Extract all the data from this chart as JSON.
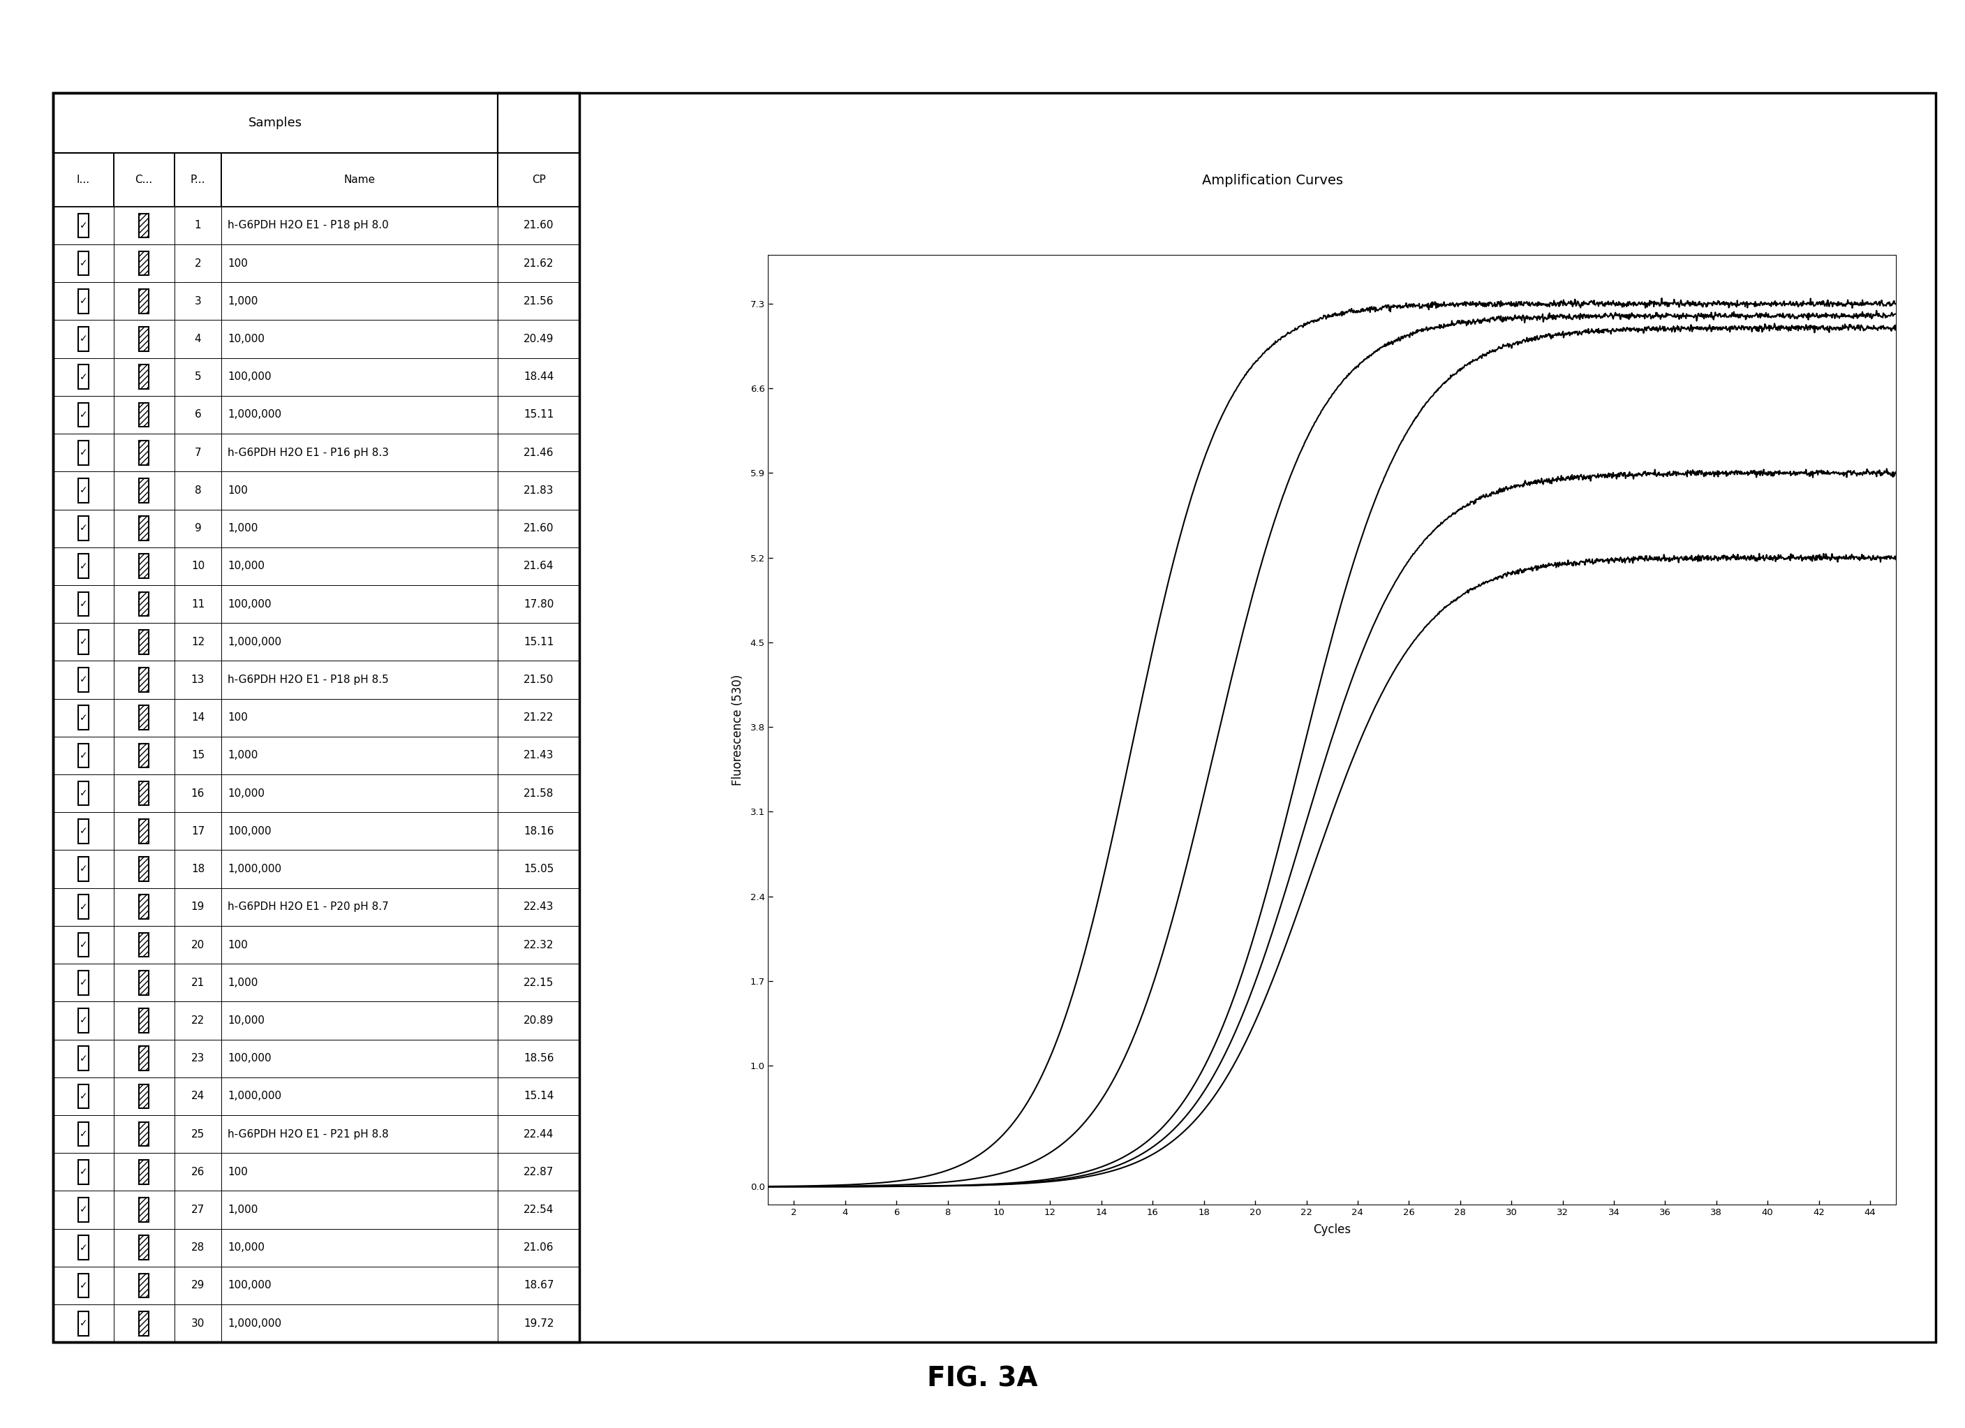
{
  "title": "FIG. 3A",
  "plot_title": "Amplification Curves",
  "ylabel": "Fluorescence (530)",
  "xlabel": "Cycles",
  "yticks": [
    0.0,
    1.0,
    1.7,
    2.4,
    3.1,
    3.8,
    4.5,
    5.2,
    5.9,
    6.6,
    7.3
  ],
  "xticks": [
    2,
    4,
    6,
    8,
    10,
    12,
    14,
    16,
    18,
    20,
    22,
    24,
    26,
    28,
    30,
    32,
    34,
    36,
    38,
    40,
    42,
    44
  ],
  "xmin": 1,
  "xmax": 45,
  "ymin": -0.15,
  "ymax": 7.7,
  "col_headers": [
    "I...",
    "C...",
    "P...",
    "Name",
    "CP"
  ],
  "rows": [
    [
      1,
      "h-G6PDH H2O E1 - P18 pH 8.0",
      "21.60"
    ],
    [
      2,
      "100",
      "21.62"
    ],
    [
      3,
      "1,000",
      "21.56"
    ],
    [
      4,
      "10,000",
      "20.49"
    ],
    [
      5,
      "100,000",
      "18.44"
    ],
    [
      6,
      "1,000,000",
      "15.11"
    ],
    [
      7,
      "h-G6PDH H2O E1 - P16 pH 8.3",
      "21.46"
    ],
    [
      8,
      "100",
      "21.83"
    ],
    [
      9,
      "1,000",
      "21.60"
    ],
    [
      10,
      "10,000",
      "21.64"
    ],
    [
      11,
      "100,000",
      "17.80"
    ],
    [
      12,
      "1,000,000",
      "15.11"
    ],
    [
      13,
      "h-G6PDH H2O E1 - P18 pH 8.5",
      "21.50"
    ],
    [
      14,
      "100",
      "21.22"
    ],
    [
      15,
      "1,000",
      "21.43"
    ],
    [
      16,
      "10,000",
      "21.58"
    ],
    [
      17,
      "100,000",
      "18.16"
    ],
    [
      18,
      "1,000,000",
      "15.05"
    ],
    [
      19,
      "h-G6PDH H2O E1 - P20 pH 8.7",
      "22.43"
    ],
    [
      20,
      "100",
      "22.32"
    ],
    [
      21,
      "1,000",
      "22.15"
    ],
    [
      22,
      "10,000",
      "20.89"
    ],
    [
      23,
      "100,000",
      "18.56"
    ],
    [
      24,
      "1,000,000",
      "15.14"
    ],
    [
      25,
      "h-G6PDH H2O E1 - P21 pH 8.8",
      "22.44"
    ],
    [
      26,
      "100",
      "22.87"
    ],
    [
      27,
      "1,000",
      "22.54"
    ],
    [
      28,
      "10,000",
      "21.06"
    ],
    [
      29,
      "100,000",
      "18.67"
    ],
    [
      30,
      "1,000,000",
      "19.72"
    ]
  ],
  "curves": [
    {
      "cp": 15.2,
      "plateau": 7.3,
      "k": 0.55
    },
    {
      "cp": 18.4,
      "plateau": 7.2,
      "k": 0.5
    },
    {
      "cp": 21.8,
      "plateau": 7.1,
      "k": 0.48
    },
    {
      "cp": 21.9,
      "plateau": 5.9,
      "k": 0.48
    },
    {
      "cp": 22.2,
      "plateau": 5.2,
      "k": 0.47
    }
  ],
  "bg_color": "#ffffff",
  "line_color": "#000000"
}
